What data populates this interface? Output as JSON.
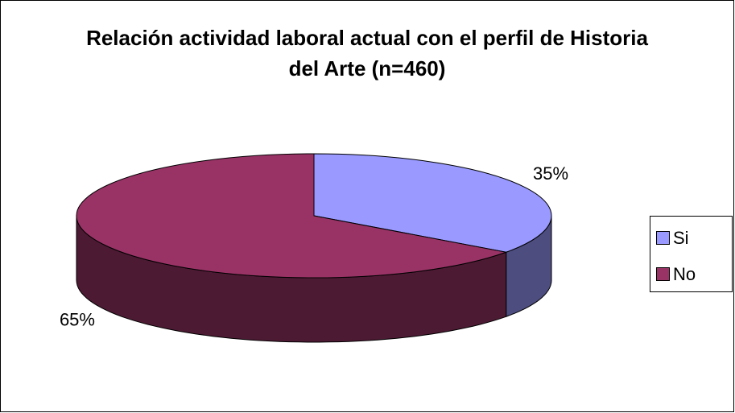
{
  "chart_data": {
    "type": "pie3d",
    "title": "Relación actividad laboral actual con el perfil de Historia del Arte (n=460)",
    "categories": [
      "Si",
      "No"
    ],
    "values": [
      35,
      65
    ],
    "value_labels": [
      "35%",
      "65%"
    ],
    "colors": [
      "#9999ff",
      "#993366"
    ],
    "legend": "right"
  }
}
